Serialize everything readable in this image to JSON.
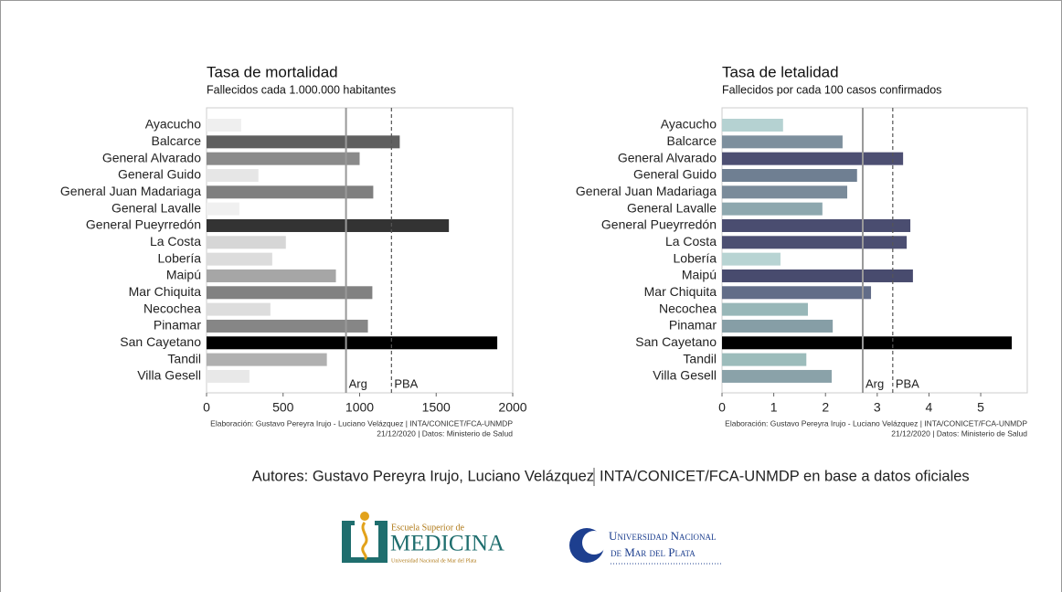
{
  "chart_data": [
    {
      "type": "bar",
      "orientation": "horizontal",
      "title": "Tasa de mortalidad",
      "subtitle": "Fallecidos cada 1.000.000 habitantes",
      "categories": [
        "Ayacucho",
        "Balcarce",
        "General Alvarado",
        "General Guido",
        "General Juan Madariaga",
        "General Lavalle",
        "General Pueyrredón",
        "La Costa",
        "Lobería",
        "Maipú",
        "Mar Chiquita",
        "Necochea",
        "Pinamar",
        "San Cayetano",
        "Tandil",
        "Villa Gesell"
      ],
      "values": [
        226,
        1262,
        1000,
        339,
        1089,
        214,
        1583,
        518,
        429,
        845,
        1083,
        417,
        1054,
        1899,
        786,
        280
      ],
      "colors": [
        "#efefef",
        "#5f5f5f",
        "#8a8a8a",
        "#e6e6e6",
        "#7f7f7f",
        "#f0f0f0",
        "#333333",
        "#d6d6d6",
        "#dcdcdc",
        "#a6a6a6",
        "#818181",
        "#dddddd",
        "#868686",
        "#000000",
        "#b0b0b0",
        "#e8e8e8"
      ],
      "xlim": [
        0,
        2000
      ],
      "xticks": [
        0,
        500,
        1000,
        1500,
        2000
      ],
      "reference_lines": [
        {
          "label": "Arg",
          "value": 911,
          "style": "solid"
        },
        {
          "label": "PBA",
          "value": 1208,
          "style": "dashed"
        }
      ],
      "source": [
        "Elaboración: Gustavo Pereyra Irujo - Luciano Velázquez | INTA/CONICET/FCA-UNMDP",
        "21/12/2020 | Datos: Ministerio de Salud"
      ]
    },
    {
      "type": "bar",
      "orientation": "horizontal",
      "title": "Tasa de letalidad",
      "subtitle": "Fallecidos por cada 100 casos confirmados",
      "categories": [
        "Ayacucho",
        "Balcarce",
        "General Alvarado",
        "General Guido",
        "General Juan Madariaga",
        "General Lavalle",
        "General Pueyrredón",
        "La Costa",
        "Lobería",
        "Maipú",
        "Mar Chiquita",
        "Necochea",
        "Pinamar",
        "San Cayetano",
        "Tandil",
        "Villa Gesell"
      ],
      "values": [
        1.18,
        2.33,
        3.5,
        2.61,
        2.42,
        1.94,
        3.64,
        3.57,
        1.13,
        3.69,
        2.88,
        1.66,
        2.14,
        5.6,
        1.63,
        2.12
      ],
      "colors": [
        "#b5d2d2",
        "#7d8f9d",
        "#4d4f72",
        "#6f7f92",
        "#7a8b9a",
        "#8da7ae",
        "#4a4d70",
        "#4c4f72",
        "#b8d4d3",
        "#484b6e",
        "#626d88",
        "#98b7b8",
        "#869ea6",
        "#000000",
        "#9cbcbb",
        "#8aa2a9"
      ],
      "xlim": [
        0,
        5.9
      ],
      "xticks": [
        0,
        1,
        2,
        3,
        4,
        5
      ],
      "reference_lines": [
        {
          "label": "Arg",
          "value": 2.72,
          "style": "solid"
        },
        {
          "label": "PBA",
          "value": 3.3,
          "style": "dashed"
        }
      ],
      "source": [
        "Elaboración: Gustavo Pereyra Irujo - Luciano Velázquez | INTA/CONICET/FCA-UNMDP",
        "21/12/2020 | Datos: Ministerio de Salud"
      ]
    }
  ],
  "footer": {
    "authors": "Autores: Gustavo Pereyra Irujo, Luciano Velázquez",
    "institutions": "INTA/CONICET/FCA-UNMDP en base a datos oficiales"
  },
  "logos": {
    "medicina": {
      "line1": "Escuela Superior de",
      "line2": "MEDICINA",
      "line3": "Universidad Nacional de Mar del Plata"
    },
    "unmdp": {
      "line1": "Universidad Nacional",
      "line2": "de Mar del Plata"
    }
  }
}
